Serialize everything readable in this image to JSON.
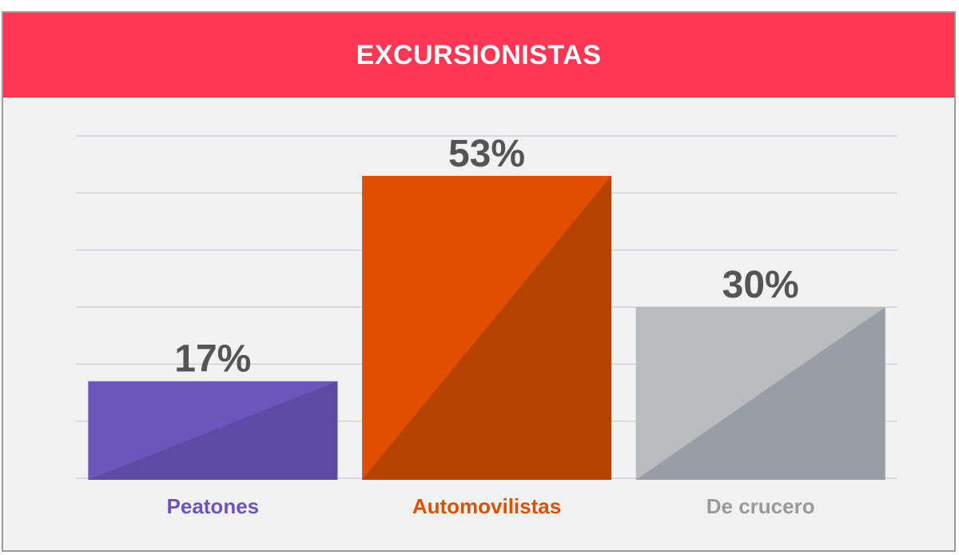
{
  "chart_data": {
    "type": "bar",
    "title": "EXCURSIONISTAS",
    "categories": [
      "Peatones",
      "Automovilistas",
      "De crucero"
    ],
    "values": [
      17,
      53,
      30
    ],
    "value_labels": [
      "17%",
      "53%",
      "30%"
    ],
    "colors": {
      "Peatones": {
        "light": "#6e55bb",
        "dark": "#5c4aa5",
        "label": "#6e55bb"
      },
      "Automovilistas": {
        "light": "#e04e00",
        "dark": "#b54200",
        "label": "#e04e00"
      },
      "De crucero": {
        "light": "#bbbcbe",
        "dark": "#989ea6",
        "label": "#9a9a9a"
      }
    },
    "ylim": [
      0,
      60
    ],
    "grid": true,
    "xlabel": "",
    "ylabel": ""
  }
}
